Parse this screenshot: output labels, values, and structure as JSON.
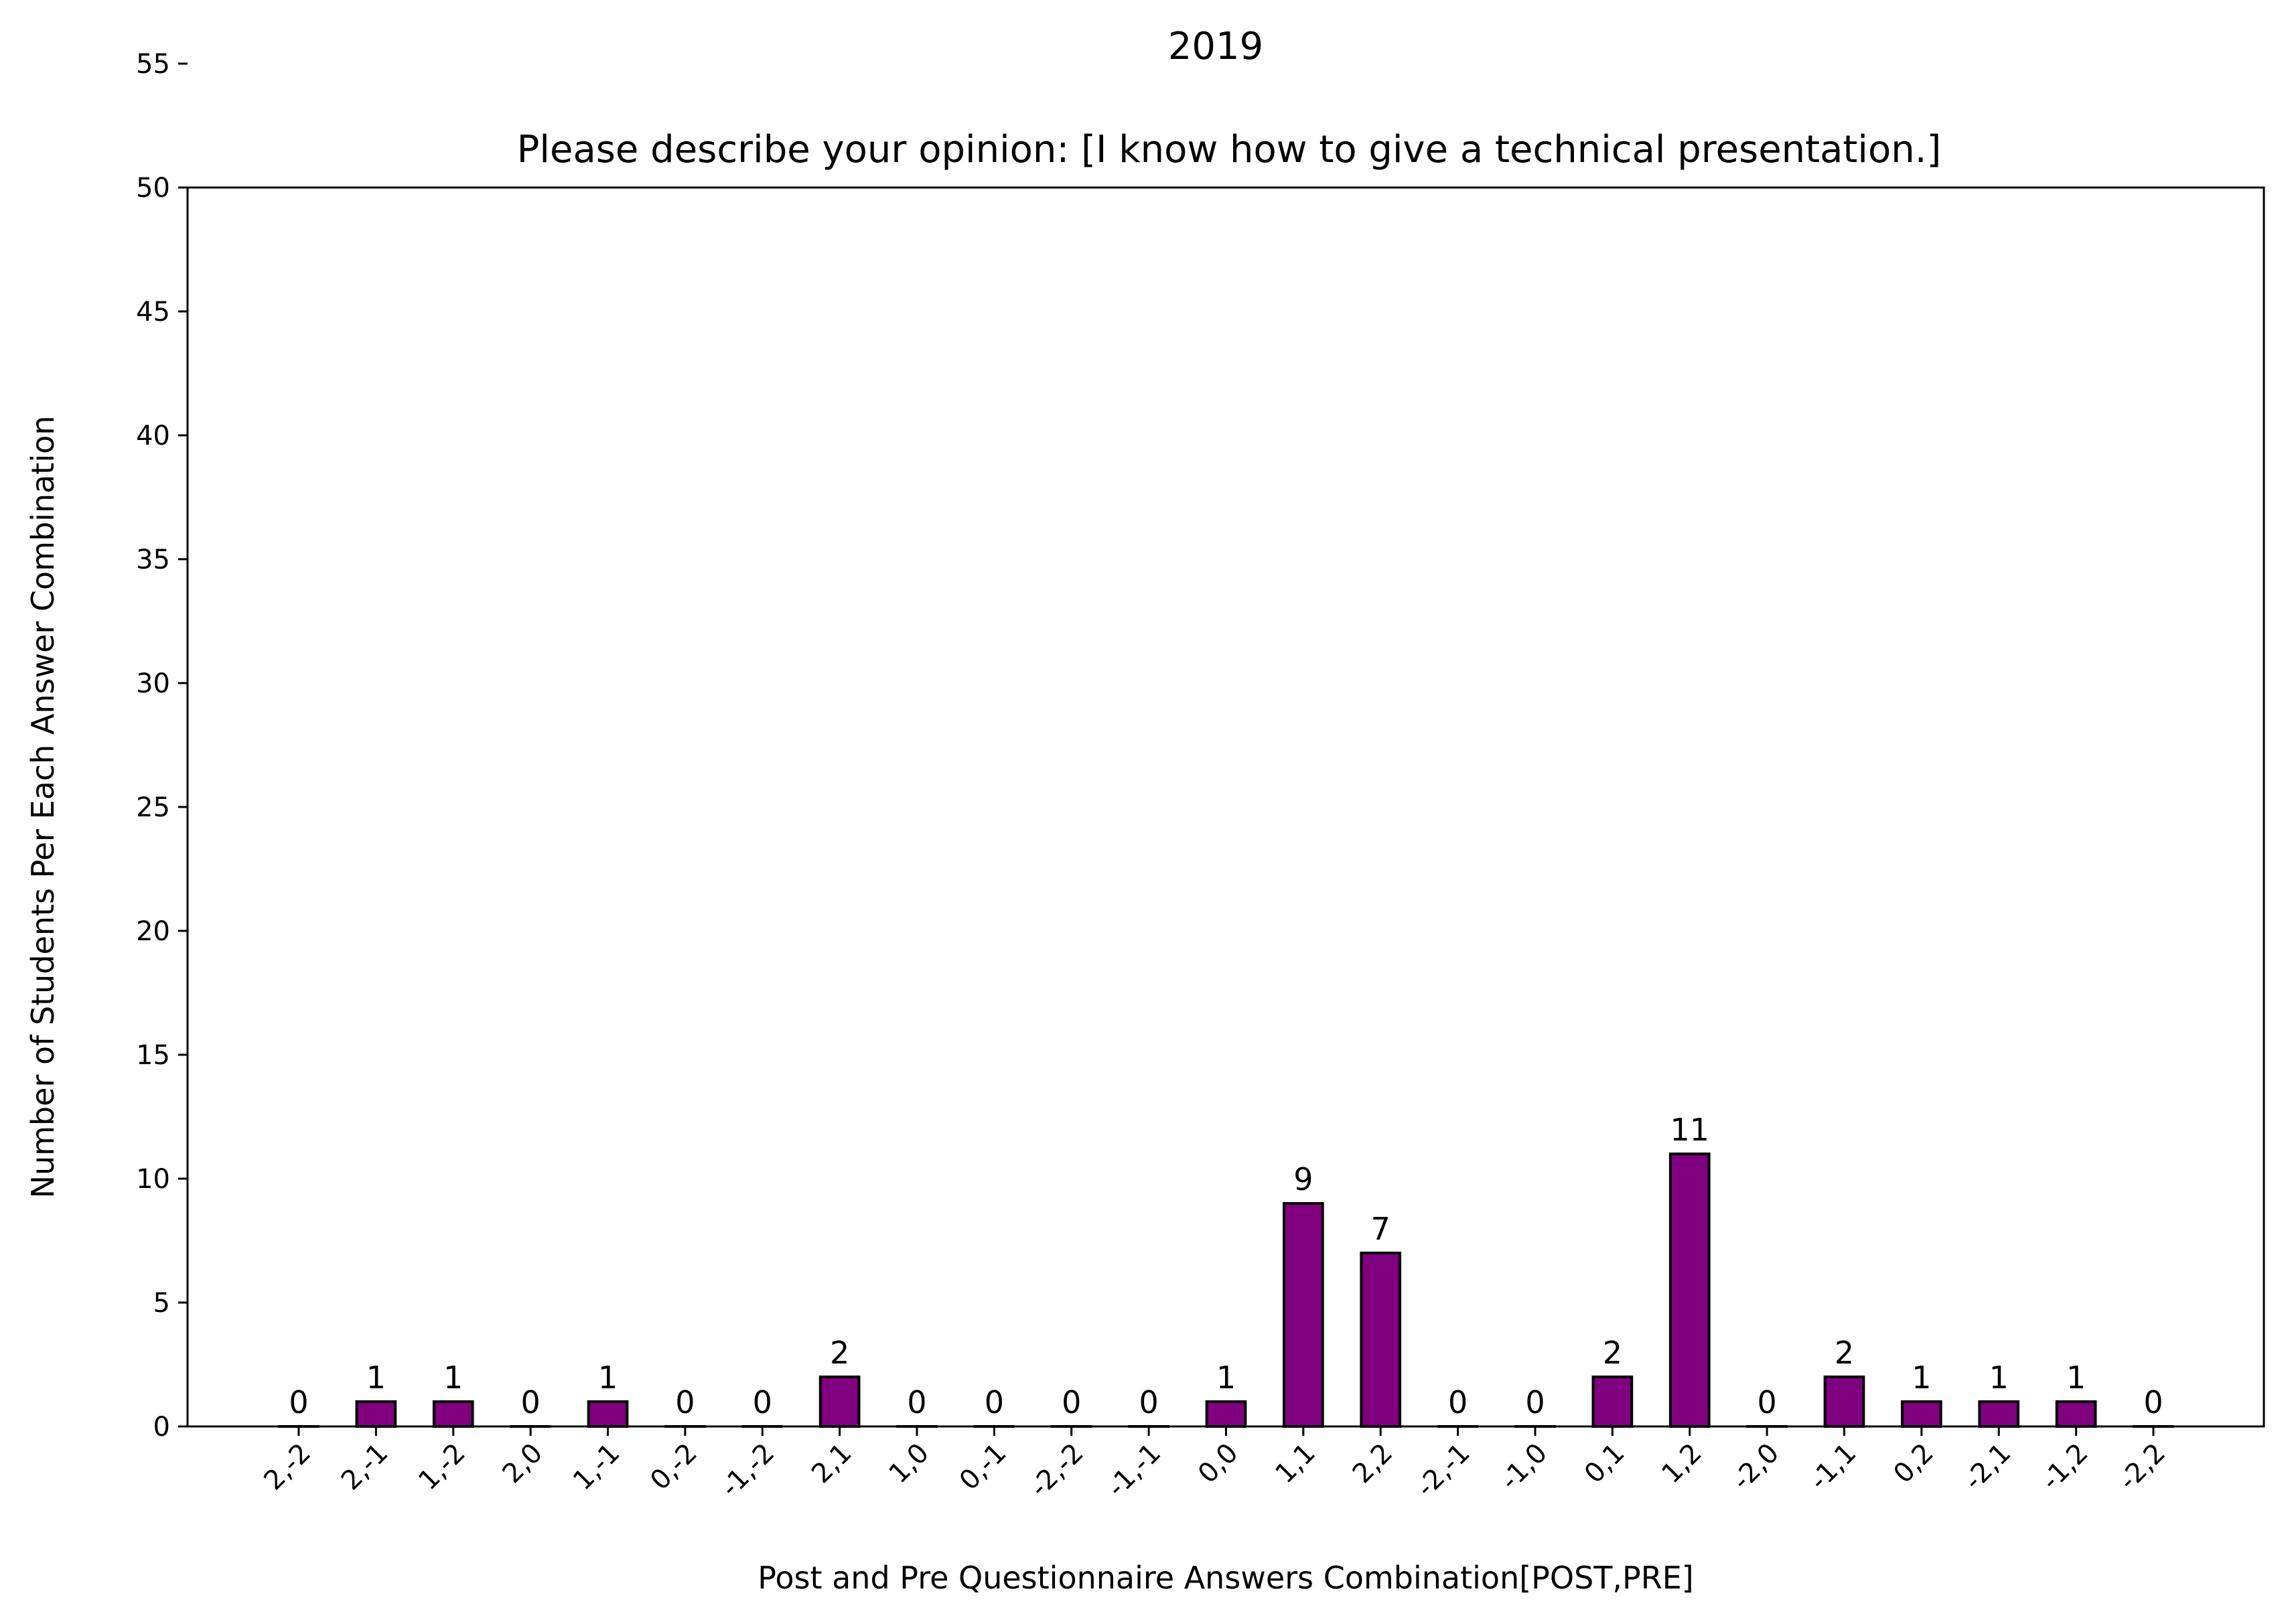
{
  "chart_data": {
    "type": "bar",
    "suptitle": "2019",
    "title": "Please describe your opinion: [I know how to give a technical presentation.]",
    "xlabel": "Post and Pre Questionnaire Answers Combination[POST,PRE]",
    "ylabel": "Number of Students Per Each Answer Combination",
    "categories": [
      "2,-2",
      "2,-1",
      "1,-2",
      "2,0",
      "1,-1",
      "0,-2",
      "-1,-2",
      "2,1",
      "1,0",
      "0,-1",
      "-2,-2",
      "-1,-1",
      "0,0",
      "1,1",
      "2,2",
      "-2,-1",
      "-1,0",
      "0,1",
      "1,2",
      "-2,0",
      "-1,1",
      "0,2",
      "-2,1",
      "-1,2",
      "-2,2"
    ],
    "values": [
      0,
      1,
      1,
      0,
      1,
      0,
      0,
      2,
      0,
      0,
      0,
      0,
      1,
      9,
      7,
      0,
      0,
      2,
      11,
      0,
      2,
      1,
      1,
      1,
      0
    ],
    "ylim": [
      0,
      100
    ],
    "yticks": [
      0,
      5,
      10,
      15,
      20,
      25,
      30,
      35,
      40,
      45,
      50,
      55,
      60,
      65,
      70,
      75,
      80,
      85,
      90,
      95
    ],
    "bar_color": "#800080",
    "edge_color": "#000000",
    "grid": false,
    "legend": "none"
  }
}
